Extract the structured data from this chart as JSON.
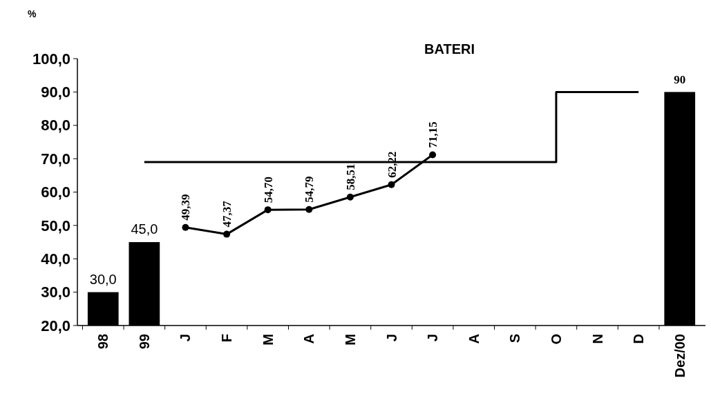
{
  "chart_data": {
    "type": "bar",
    "title": "BATERI",
    "ylabel": "%",
    "categories": [
      "98",
      "99",
      "J",
      "F",
      "M",
      "A",
      "M",
      "J",
      "J",
      "A",
      "S",
      "O",
      "N",
      "D",
      "Dez/00"
    ],
    "ylim": [
      20,
      100
    ],
    "yticks": [
      {
        "value": 20,
        "label": "20,0"
      },
      {
        "value": 30,
        "label": "30,0"
      },
      {
        "value": 40,
        "label": "40,0"
      },
      {
        "value": 50,
        "label": "50,0"
      },
      {
        "value": 60,
        "label": "60,0"
      },
      {
        "value": 70,
        "label": "70,0"
      },
      {
        "value": 80,
        "label": "80,0"
      },
      {
        "value": 90,
        "label": "90,0"
      },
      {
        "value": 100,
        "label": "100,0"
      }
    ],
    "grid": false,
    "series": [
      {
        "color": "#000000",
        "values": [
          30,
          45,
          null,
          null,
          null,
          null,
          null,
          null,
          null,
          null,
          null,
          null,
          null,
          null,
          90
        ],
        "value_labels": [
          "30,0",
          "45,0",
          null,
          null,
          null,
          null,
          null,
          null,
          null,
          null,
          null,
          null,
          null,
          null,
          "90"
        ]
      },
      {
        "type": "line",
        "color": "#000000",
        "marker": "circle",
        "values": [
          null,
          null,
          49.39,
          47.37,
          54.7,
          54.79,
          58.51,
          62.22,
          71.15,
          null,
          null,
          null,
          null,
          null,
          null
        ],
        "value_labels": [
          null,
          null,
          "49,39",
          "47,37",
          "54,70",
          "54,79",
          "58,51",
          "62,22",
          "71,15",
          null,
          null,
          null,
          null,
          null,
          null
        ]
      },
      {
        "type": "step",
        "color": "#000000",
        "values": [
          null,
          69,
          69,
          69,
          69,
          69,
          69,
          69,
          69,
          69,
          69,
          90,
          90,
          90,
          null
        ]
      }
    ]
  }
}
